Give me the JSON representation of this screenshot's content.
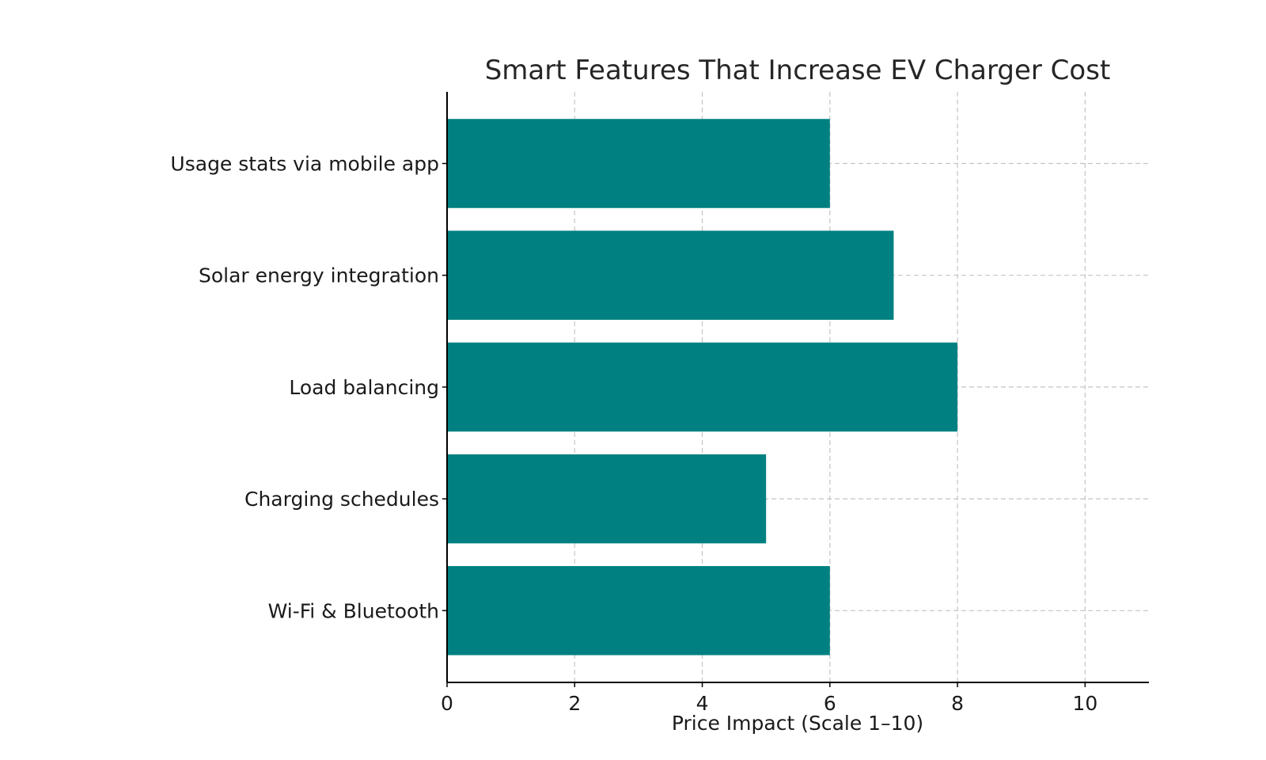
{
  "chart_data": {
    "type": "bar",
    "orientation": "horizontal",
    "title": "Smart Features That Increase EV Charger Cost",
    "xlabel": "Price Impact (Scale 1–10)",
    "ylabel": "",
    "categories": [
      "Usage stats via mobile app",
      "Solar energy integration",
      "Load balancing",
      "Charging schedules",
      "Wi-Fi & Bluetooth"
    ],
    "values": [
      6,
      7,
      8,
      5,
      6
    ],
    "xlim": [
      0,
      11
    ],
    "xticks": [
      0,
      2,
      4,
      6,
      8,
      10
    ],
    "xtick_labels": [
      "0",
      "2",
      "4",
      "6",
      "8",
      "10"
    ],
    "grid": true,
    "bar_color": "#008080"
  }
}
